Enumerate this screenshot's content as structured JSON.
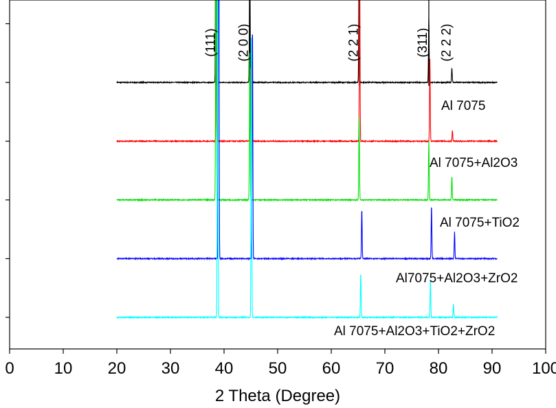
{
  "chart_data": {
    "type": "line",
    "title": "",
    "xlabel": "2 Theta (Degree)",
    "ylabel": "",
    "xlim": [
      0,
      100
    ],
    "xticks": [
      0,
      10,
      20,
      30,
      40,
      50,
      60,
      70,
      80,
      90,
      100
    ],
    "y_tick_labels_shown": false,
    "grid": false,
    "legend": "labels placed beside each trace, right side",
    "peak_labels": [
      {
        "text": "(111)",
        "x": 38.5
      },
      {
        "text": "(2 0 0)",
        "x": 44.8
      },
      {
        "text": "(2 2 1)",
        "x": 65.2
      },
      {
        "text": "(311)",
        "x": 78.2
      },
      {
        "text": "(2 2 2)",
        "x": 82.5
      }
    ],
    "reference_lines_x": [
      38.5,
      44.8,
      65.2,
      78.2
    ],
    "series": [
      {
        "name": "Al 7075",
        "color": "#000000",
        "baseline": 4.0,
        "peaks": [
          [
            38.5,
            8.0
          ],
          [
            44.8,
            2.6
          ],
          [
            65.2,
            2.4
          ],
          [
            78.2,
            1.1
          ],
          [
            82.5,
            0.25
          ]
        ]
      },
      {
        "name": "Al 7075+Al2O3",
        "color": "#ff0000",
        "baseline": 3.0,
        "peaks": [
          [
            38.6,
            8.0
          ],
          [
            44.9,
            1.3
          ],
          [
            65.3,
            3.0
          ],
          [
            78.4,
            1.4
          ],
          [
            82.6,
            0.18
          ]
        ]
      },
      {
        "name": "Al 7075+TiO2",
        "color": "#00e000",
        "baseline": 2.0,
        "peaks": [
          [
            38.5,
            8.0
          ],
          [
            44.8,
            2.5
          ],
          [
            65.2,
            1.4
          ],
          [
            78.2,
            1.0
          ],
          [
            82.5,
            0.4
          ]
        ]
      },
      {
        "name": "Al7075+Al2O3+ZrO2",
        "color": "#0000ff",
        "baseline": 1.0,
        "peaks": [
          [
            39.0,
            8.0
          ],
          [
            45.3,
            4.0
          ],
          [
            65.7,
            0.85
          ],
          [
            78.7,
            0.9
          ],
          [
            83.0,
            0.45
          ]
        ]
      },
      {
        "name": "Al 7075+Al2O3+TiO2+ZrO2",
        "color": "#00ffff",
        "baseline": 0.0,
        "peaks": [
          [
            38.8,
            8.0
          ],
          [
            45.1,
            5.0
          ],
          [
            65.5,
            0.75
          ],
          [
            78.5,
            0.65
          ],
          [
            82.8,
            0.22
          ]
        ]
      }
    ]
  }
}
